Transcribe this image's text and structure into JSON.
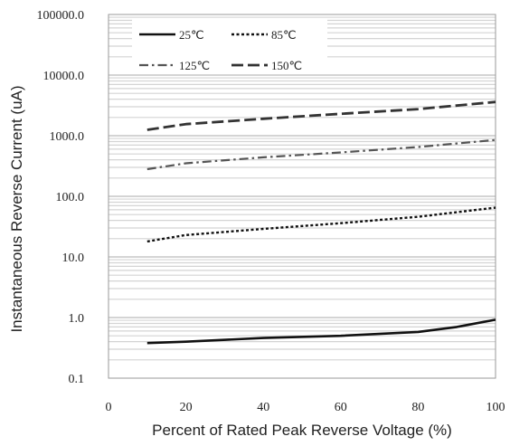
{
  "chart_data": {
    "type": "line",
    "xlabel": "Percent of  Rated Peak Reverse Voltage (%)",
    "ylabel": "Instantaneous Reverse Current (uA)",
    "xlim": [
      0,
      100
    ],
    "ylim": [
      0.1,
      100000
    ],
    "y_scale": "log",
    "grid": true,
    "legend_position": "top-center",
    "x_ticks": [
      0,
      20,
      40,
      60,
      80,
      100
    ],
    "x_tick_labels": [
      "0",
      "20",
      "40",
      "60",
      "80",
      "100"
    ],
    "y_ticks": [
      0.1,
      1,
      10,
      100,
      1000,
      10000,
      100000
    ],
    "y_tick_labels": [
      "0.1",
      "1.0",
      "10.0",
      "100.0",
      "1000.0",
      "10000.0",
      "100000.0"
    ],
    "series": [
      {
        "name": "25℃",
        "style": "solid",
        "color": "#111111",
        "x": [
          10,
          20,
          40,
          60,
          80,
          90,
          100
        ],
        "y": [
          0.38,
          0.4,
          0.46,
          0.5,
          0.58,
          0.7,
          0.92
        ]
      },
      {
        "name": "85℃",
        "style": "dotted",
        "color": "#111111",
        "x": [
          10,
          20,
          40,
          60,
          80,
          100
        ],
        "y": [
          18,
          23,
          29,
          36,
          46,
          65
        ]
      },
      {
        "name": "125℃",
        "style": "dashdot",
        "color": "#555555",
        "x": [
          10,
          20,
          40,
          60,
          80,
          100
        ],
        "y": [
          280,
          350,
          440,
          530,
          650,
          850
        ]
      },
      {
        "name": "150℃",
        "style": "dashed",
        "color": "#333333",
        "x": [
          10,
          20,
          40,
          60,
          80,
          100
        ],
        "y": [
          1250,
          1550,
          1900,
          2300,
          2750,
          3600
        ]
      }
    ]
  }
}
